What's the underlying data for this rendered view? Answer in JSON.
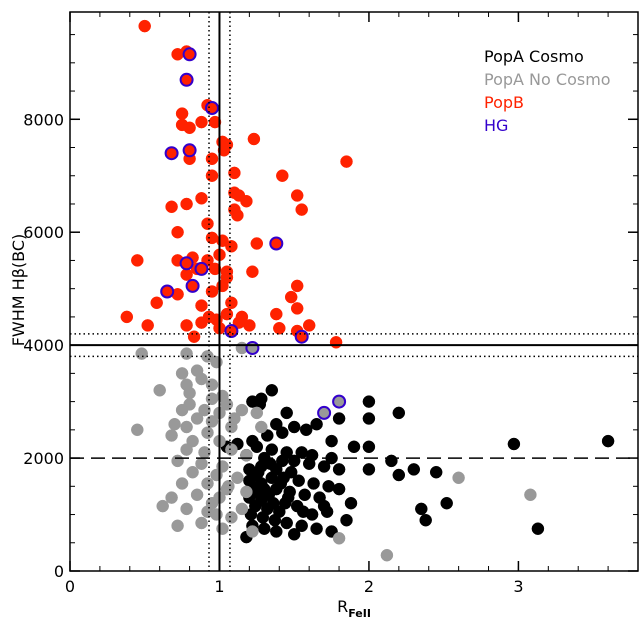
{
  "chart_data": {
    "type": "scatter",
    "xlabel": "R",
    "xlabel_sub": "FeII",
    "ylabel": "FWHM Hβ(BC)",
    "xlim": [
      0,
      3.8
    ],
    "ylim": [
      0,
      9900
    ],
    "x_ticks": [
      0,
      1,
      2,
      3
    ],
    "x_tick_labels": [
      "0",
      "1",
      "2",
      "3"
    ],
    "y_ticks": [
      0,
      2000,
      4000,
      6000,
      8000
    ],
    "y_tick_labels": [
      "0",
      "2000",
      "4000",
      "6000",
      "8000"
    ],
    "x_minor_step": 0.2,
    "y_minor_step": 500,
    "grid": false,
    "legend_position": "top-right",
    "reference_lines": [
      {
        "orientation": "vertical",
        "value": 1.0,
        "style": "solid"
      },
      {
        "orientation": "vertical",
        "value": 0.93,
        "style": "dotted"
      },
      {
        "orientation": "vertical",
        "value": 1.07,
        "style": "dotted"
      },
      {
        "orientation": "horizontal",
        "value": 4000,
        "style": "solid"
      },
      {
        "orientation": "horizontal",
        "value": 4200,
        "style": "dotted"
      },
      {
        "orientation": "horizontal",
        "value": 3800,
        "style": "dotted"
      },
      {
        "orientation": "horizontal",
        "value": 2000,
        "style": "dashed"
      }
    ],
    "series": [
      {
        "name": "PopA Cosmo",
        "color": "#000000",
        "edge": "#000000",
        "points": [
          [
            1.22,
            3000
          ],
          [
            1.28,
            3050
          ],
          [
            1.35,
            3200
          ],
          [
            1.27,
            2950
          ],
          [
            1.45,
            2800
          ],
          [
            1.38,
            2600
          ],
          [
            1.5,
            2550
          ],
          [
            1.58,
            2500
          ],
          [
            1.42,
            2450
          ],
          [
            1.32,
            2400
          ],
          [
            1.22,
            2300
          ],
          [
            1.12,
            2250
          ],
          [
            1.05,
            2200
          ],
          [
            1.25,
            2200
          ],
          [
            1.35,
            2150
          ],
          [
            1.45,
            2100
          ],
          [
            1.55,
            2100
          ],
          [
            1.62,
            2050
          ],
          [
            1.18,
            2050
          ],
          [
            1.3,
            2000
          ],
          [
            1.42,
            1950
          ],
          [
            1.5,
            1950
          ],
          [
            1.6,
            1900
          ],
          [
            1.7,
            1850
          ],
          [
            1.8,
            1800
          ],
          [
            1.28,
            1850
          ],
          [
            1.2,
            1800
          ],
          [
            1.38,
            1800
          ],
          [
            1.48,
            1750
          ],
          [
            1.25,
            1700
          ],
          [
            1.35,
            1650
          ],
          [
            1.43,
            1650
          ],
          [
            1.53,
            1600
          ],
          [
            1.63,
            1550
          ],
          [
            1.73,
            1500
          ],
          [
            1.2,
            1600
          ],
          [
            1.28,
            1550
          ],
          [
            1.22,
            1500
          ],
          [
            1.3,
            1450
          ],
          [
            1.38,
            1450
          ],
          [
            1.47,
            1400
          ],
          [
            1.57,
            1350
          ],
          [
            1.67,
            1300
          ],
          [
            1.25,
            1400
          ],
          [
            1.33,
            1350
          ],
          [
            1.2,
            1300
          ],
          [
            1.28,
            1250
          ],
          [
            1.36,
            1200
          ],
          [
            1.44,
            1200
          ],
          [
            1.52,
            1150
          ],
          [
            1.24,
            1150
          ],
          [
            1.32,
            1100
          ],
          [
            1.4,
            1050
          ],
          [
            1.21,
            1000
          ],
          [
            1.29,
            950
          ],
          [
            1.37,
            900
          ],
          [
            1.45,
            850
          ],
          [
            1.55,
            800
          ],
          [
            1.65,
            750
          ],
          [
            1.75,
            700
          ],
          [
            1.22,
            800
          ],
          [
            1.3,
            750
          ],
          [
            1.38,
            700
          ],
          [
            1.18,
            600
          ],
          [
            1.5,
            650
          ],
          [
            1.72,
            1050
          ],
          [
            1.85,
            900
          ],
          [
            1.62,
            1000
          ],
          [
            1.7,
            1150
          ],
          [
            1.8,
            1450
          ],
          [
            1.88,
            1200
          ],
          [
            2.0,
            3000
          ],
          [
            1.8,
            2700
          ],
          [
            2.0,
            2700
          ],
          [
            2.2,
            2800
          ],
          [
            1.65,
            2600
          ],
          [
            1.75,
            2300
          ],
          [
            1.9,
            2200
          ],
          [
            2.0,
            2200
          ],
          [
            1.75,
            2000
          ],
          [
            2.0,
            1800
          ],
          [
            2.15,
            1950
          ],
          [
            2.3,
            1800
          ],
          [
            2.45,
            1750
          ],
          [
            2.2,
            1700
          ],
          [
            2.35,
            1100
          ],
          [
            2.38,
            900
          ],
          [
            2.52,
            1200
          ],
          [
            2.97,
            2250
          ],
          [
            3.6,
            2300
          ],
          [
            3.13,
            750
          ],
          [
            1.26,
            1750
          ],
          [
            1.34,
            1900
          ],
          [
            1.46,
            1300
          ],
          [
            1.56,
            1050
          ],
          [
            1.41,
            1550
          ]
        ]
      },
      {
        "name": "PopA No Cosmo",
        "color": "#999999",
        "edge": "#999999",
        "points": [
          [
            0.48,
            3850
          ],
          [
            0.78,
            3850
          ],
          [
            0.92,
            3800
          ],
          [
            0.98,
            3700
          ],
          [
            1.15,
            3950
          ],
          [
            0.75,
            3500
          ],
          [
            0.88,
            3400
          ],
          [
            0.78,
            3300
          ],
          [
            0.95,
            3300
          ],
          [
            0.8,
            3150
          ],
          [
            1.02,
            3100
          ],
          [
            1.05,
            2950
          ],
          [
            0.8,
            2950
          ],
          [
            0.75,
            2850
          ],
          [
            0.9,
            2850
          ],
          [
            0.85,
            2700
          ],
          [
            1.0,
            2800
          ],
          [
            1.15,
            2850
          ],
          [
            1.25,
            2800
          ],
          [
            0.95,
            2650
          ],
          [
            0.78,
            2550
          ],
          [
            1.08,
            2550
          ],
          [
            0.92,
            2450
          ],
          [
            0.45,
            2500
          ],
          [
            0.68,
            2400
          ],
          [
            0.82,
            2300
          ],
          [
            1.0,
            2300
          ],
          [
            0.78,
            2150
          ],
          [
            0.9,
            2100
          ],
          [
            1.08,
            2150
          ],
          [
            1.18,
            2050
          ],
          [
            0.72,
            1950
          ],
          [
            0.88,
            1900
          ],
          [
            1.02,
            1850
          ],
          [
            0.82,
            1750
          ],
          [
            0.98,
            1700
          ],
          [
            1.12,
            1650
          ],
          [
            0.75,
            1550
          ],
          [
            0.92,
            1550
          ],
          [
            1.06,
            1500
          ],
          [
            0.68,
            1300
          ],
          [
            0.85,
            1350
          ],
          [
            1.0,
            1300
          ],
          [
            0.78,
            1100
          ],
          [
            0.92,
            1050
          ],
          [
            1.08,
            950
          ],
          [
            0.62,
            1150
          ],
          [
            0.95,
            1200
          ],
          [
            1.15,
            1100
          ],
          [
            0.72,
            800
          ],
          [
            1.22,
            700
          ],
          [
            1.8,
            580
          ],
          [
            2.12,
            280
          ],
          [
            2.6,
            1650
          ],
          [
            3.08,
            1350
          ],
          [
            1.05,
            1450
          ],
          [
            0.98,
            1000
          ],
          [
            0.7,
            2600
          ],
          [
            0.6,
            3200
          ],
          [
            0.95,
            3050
          ],
          [
            0.85,
            3550
          ],
          [
            1.1,
            2700
          ],
          [
            1.28,
            2550
          ],
          [
            1.18,
            1400
          ],
          [
            0.88,
            850
          ],
          [
            1.02,
            750
          ]
        ]
      },
      {
        "name": "PopB",
        "color": "#ff2200",
        "edge": "#ff2200",
        "points": [
          [
            0.5,
            9650
          ],
          [
            0.78,
            9200
          ],
          [
            0.72,
            9150
          ],
          [
            0.78,
            8700
          ],
          [
            0.92,
            8250
          ],
          [
            0.75,
            8100
          ],
          [
            0.75,
            7900
          ],
          [
            0.8,
            7850
          ],
          [
            0.88,
            7950
          ],
          [
            0.97,
            7950
          ],
          [
            1.02,
            7600
          ],
          [
            1.05,
            7550
          ],
          [
            1.03,
            7450
          ],
          [
            1.23,
            7650
          ],
          [
            0.68,
            7400
          ],
          [
            0.8,
            7300
          ],
          [
            0.95,
            7300
          ],
          [
            0.95,
            7000
          ],
          [
            1.1,
            7050
          ],
          [
            1.42,
            7000
          ],
          [
            1.85,
            7250
          ],
          [
            1.1,
            6700
          ],
          [
            1.13,
            6650
          ],
          [
            1.18,
            6550
          ],
          [
            0.88,
            6600
          ],
          [
            0.78,
            6500
          ],
          [
            0.68,
            6450
          ],
          [
            1.1,
            6400
          ],
          [
            1.12,
            6300
          ],
          [
            1.52,
            6650
          ],
          [
            1.55,
            6400
          ],
          [
            0.92,
            6150
          ],
          [
            0.72,
            6000
          ],
          [
            0.95,
            5900
          ],
          [
            1.02,
            5850
          ],
          [
            1.08,
            5750
          ],
          [
            1.0,
            5600
          ],
          [
            0.82,
            5550
          ],
          [
            0.92,
            5500
          ],
          [
            1.25,
            5800
          ],
          [
            0.97,
            5350
          ],
          [
            1.05,
            5300
          ],
          [
            1.05,
            5200
          ],
          [
            1.22,
            5300
          ],
          [
            0.45,
            5500
          ],
          [
            0.72,
            5500
          ],
          [
            0.85,
            5350
          ],
          [
            0.78,
            5250
          ],
          [
            1.02,
            5050
          ],
          [
            1.52,
            5050
          ],
          [
            1.52,
            4650
          ],
          [
            1.48,
            4850
          ],
          [
            0.82,
            5050
          ],
          [
            0.72,
            4900
          ],
          [
            0.58,
            4750
          ],
          [
            0.88,
            4700
          ],
          [
            1.08,
            4750
          ],
          [
            1.38,
            4550
          ],
          [
            0.93,
            4500
          ],
          [
            0.98,
            4450
          ],
          [
            1.13,
            4400
          ],
          [
            1.2,
            4350
          ],
          [
            0.88,
            4400
          ],
          [
            0.78,
            4350
          ],
          [
            0.52,
            4350
          ],
          [
            0.38,
            4500
          ],
          [
            1.4,
            4300
          ],
          [
            1.52,
            4250
          ],
          [
            1.6,
            4350
          ],
          [
            1.78,
            4050
          ],
          [
            1.05,
            4550
          ],
          [
            0.83,
            4150
          ],
          [
            1.0,
            4300
          ],
          [
            0.95,
            4950
          ],
          [
            1.15,
            4500
          ]
        ]
      },
      {
        "name": "HG",
        "color": "#3300cc",
        "edge": "#3300cc",
        "points": [
          [
            0.8,
            9150
          ],
          [
            0.78,
            8700
          ],
          [
            0.95,
            8200
          ],
          [
            0.8,
            7450
          ],
          [
            0.68,
            7400
          ],
          [
            1.38,
            5800
          ],
          [
            0.78,
            5450
          ],
          [
            0.88,
            5350
          ],
          [
            0.82,
            5050
          ],
          [
            0.65,
            4950
          ],
          [
            1.08,
            4250
          ],
          [
            1.55,
            4150
          ],
          [
            1.22,
            3950
          ],
          [
            1.7,
            2800
          ],
          [
            1.8,
            3000
          ]
        ],
        "fills": [
          "#ff2200",
          "#ff2200",
          "#ff2200",
          "#ff2200",
          "#ff2200",
          "#ff2200",
          "#ff2200",
          "#ff2200",
          "#ff2200",
          "#ff2200",
          "#ff2200",
          "#ff2200",
          "#999999",
          "#999999",
          "#999999"
        ]
      }
    ],
    "legend": [
      {
        "label": "PopA Cosmo",
        "color": "#000000"
      },
      {
        "label": "PopA No Cosmo",
        "color": "#999999"
      },
      {
        "label": "PopB",
        "color": "#ff2200"
      },
      {
        "label": "HG",
        "color": "#3300cc"
      }
    ]
  }
}
